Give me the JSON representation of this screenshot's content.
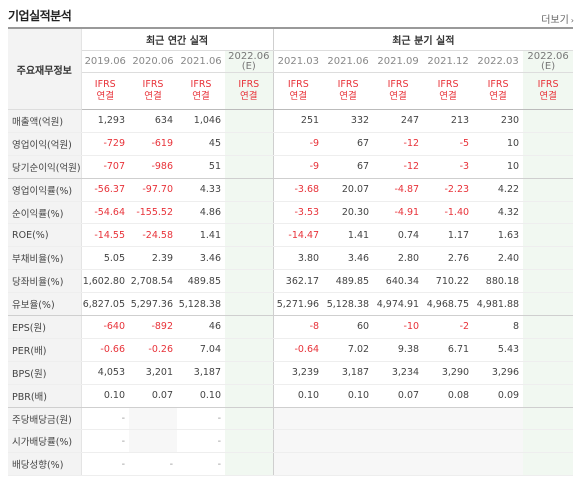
{
  "header": {
    "title": "기업실적분석",
    "more_label": "더보기"
  },
  "table": {
    "corner_label": "주요재무정보",
    "group_annual": "최근 연간 실적",
    "group_quarter": "최근 분기 실적",
    "annual_periods": [
      "2019.06",
      "2020.06",
      "2021.06",
      "2022.06\n(E)"
    ],
    "quarter_periods": [
      "2021.03",
      "2021.06",
      "2021.09",
      "2021.12",
      "2022.03",
      "2022.06\n(E)"
    ],
    "accounting": "IFRS\n연결",
    "rows": [
      {
        "label": "매출액(억원)",
        "annual": [
          "1,293",
          "634",
          "1,046",
          ""
        ],
        "quarter": [
          "251",
          "332",
          "247",
          "213",
          "230",
          ""
        ]
      },
      {
        "label": "영업이익(억원)",
        "annual": [
          "-729",
          "-619",
          "45",
          ""
        ],
        "quarter": [
          "-9",
          "67",
          "-12",
          "-5",
          "10",
          ""
        ]
      },
      {
        "label": "당기순이익(억원)",
        "annual": [
          "-707",
          "-986",
          "51",
          ""
        ],
        "quarter": [
          "-9",
          "67",
          "-12",
          "-3",
          "10",
          ""
        ]
      },
      {
        "label": "영업이익률(%)",
        "annual": [
          "-56.37",
          "-97.70",
          "4.33",
          ""
        ],
        "quarter": [
          "-3.68",
          "20.07",
          "-4.87",
          "-2.23",
          "4.22",
          ""
        ]
      },
      {
        "label": "순이익률(%)",
        "annual": [
          "-54.64",
          "-155.52",
          "4.86",
          ""
        ],
        "quarter": [
          "-3.53",
          "20.30",
          "-4.91",
          "-1.40",
          "4.32",
          ""
        ]
      },
      {
        "label": "ROE(%)",
        "annual": [
          "-14.55",
          "-24.58",
          "1.41",
          ""
        ],
        "quarter": [
          "-14.47",
          "1.41",
          "0.74",
          "1.17",
          "1.63",
          ""
        ]
      },
      {
        "label": "부채비율(%)",
        "annual": [
          "5.05",
          "2.39",
          "3.46",
          ""
        ],
        "quarter": [
          "3.80",
          "3.46",
          "2.80",
          "2.76",
          "2.40",
          ""
        ]
      },
      {
        "label": "당좌비율(%)",
        "annual": [
          "1,602.80",
          "2,708.54",
          "489.85",
          ""
        ],
        "quarter": [
          "362.17",
          "489.85",
          "640.34",
          "710.22",
          "880.18",
          ""
        ]
      },
      {
        "label": "유보율(%)",
        "annual": [
          "6,827.05",
          "5,297.36",
          "5,128.38",
          ""
        ],
        "quarter": [
          "5,271.96",
          "5,128.38",
          "4,974.91",
          "4,968.75",
          "4,981.88",
          ""
        ]
      },
      {
        "label": "EPS(원)",
        "annual": [
          "-640",
          "-892",
          "46",
          ""
        ],
        "quarter": [
          "-8",
          "60",
          "-10",
          "-2",
          "8",
          ""
        ]
      },
      {
        "label": "PER(배)",
        "annual": [
          "-0.66",
          "-0.26",
          "7.04",
          ""
        ],
        "quarter": [
          "-0.64",
          "7.02",
          "9.38",
          "6.71",
          "5.43",
          ""
        ]
      },
      {
        "label": "BPS(원)",
        "annual": [
          "4,053",
          "3,201",
          "3,187",
          ""
        ],
        "quarter": [
          "3,239",
          "3,187",
          "3,234",
          "3,290",
          "3,296",
          ""
        ]
      },
      {
        "label": "PBR(배)",
        "annual": [
          "0.10",
          "0.07",
          "0.10",
          ""
        ],
        "quarter": [
          "0.10",
          "0.10",
          "0.07",
          "0.08",
          "0.09",
          ""
        ]
      },
      {
        "label": "주당배당금(원)",
        "annual": [
          "-",
          "",
          "-",
          ""
        ],
        "quarter": [
          "",
          "",
          "",
          "",
          "",
          ""
        ]
      },
      {
        "label": "시가배당률(%)",
        "annual": [
          "-",
          "",
          "-",
          ""
        ],
        "quarter": [
          "",
          "",
          "",
          "",
          "",
          ""
        ]
      },
      {
        "label": "배당성향(%)",
        "annual": [
          "-",
          "-",
          "-",
          ""
        ],
        "quarter": [
          "",
          "",
          "",
          "",
          "",
          ""
        ]
      }
    ]
  },
  "colors": {
    "negative": "#e8333a",
    "estimate_bg": "#f1f8f1",
    "label_bg": "#f3f3f3"
  }
}
